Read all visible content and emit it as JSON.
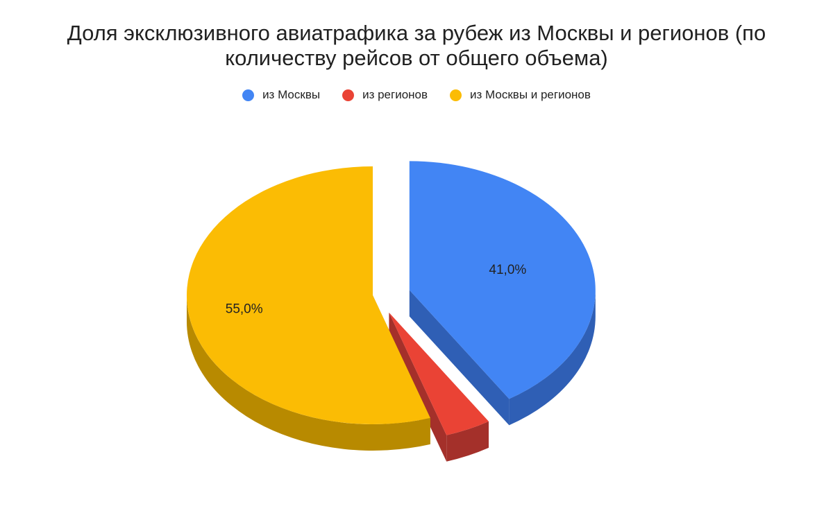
{
  "chart_data": {
    "type": "pie",
    "title": "Доля эксклюзивного авиатрафика за рубеж из Москвы и регионов (по количеству рейсов от общего объема)",
    "title_lines": [
      "Доля эксклюзивного авиатрафика за рубеж из Москвы и регионов (по",
      "количеству рейсов от общего объема)"
    ],
    "legend_position": "top",
    "style": "3d",
    "categories": [
      "из Москвы",
      "из регионов",
      "из Москвы и регионов"
    ],
    "values": [
      41.0,
      4.0,
      55.0
    ],
    "unit": "%",
    "colors": [
      "#4285F4",
      "#EA4335",
      "#FBBC04"
    ],
    "side_colors": [
      "#2F5FB5",
      "#A4302A",
      "#B88A00"
    ],
    "data_labels": [
      "41,0%",
      "",
      "55,0%"
    ]
  }
}
